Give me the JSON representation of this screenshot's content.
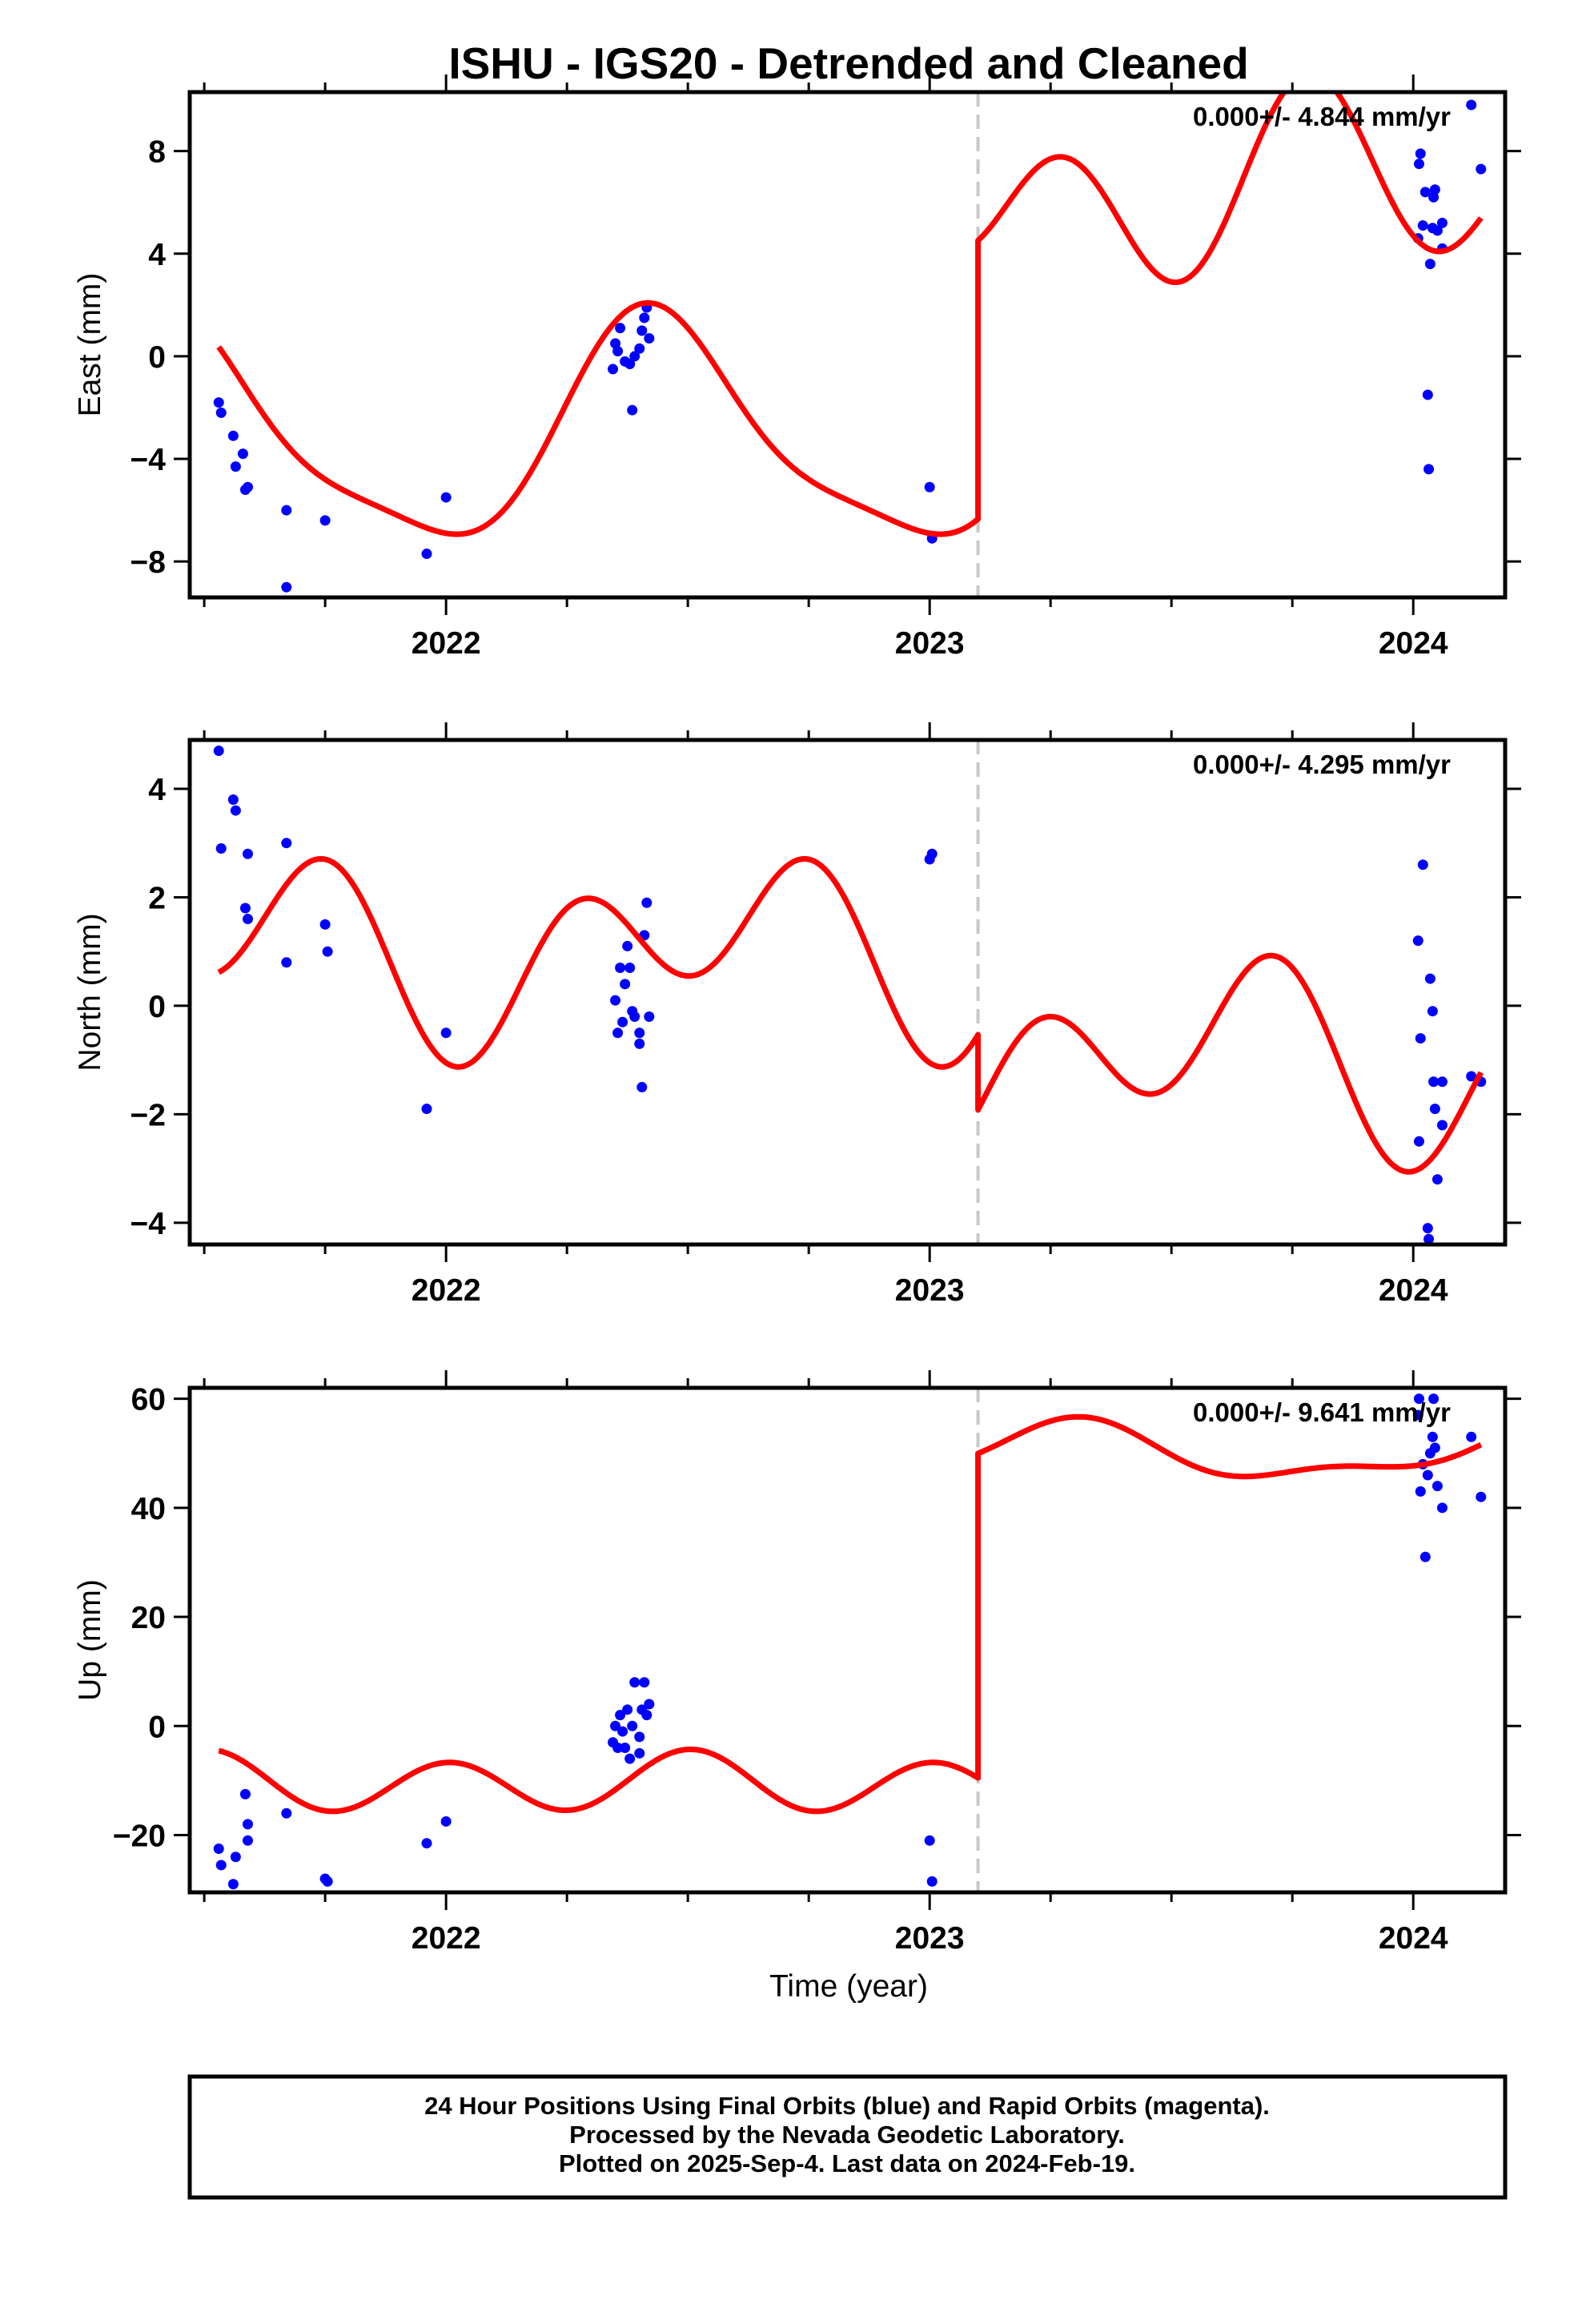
{
  "title": "ISHU - IGS20 - Detrended and Cleaned",
  "xlabel": "Time (year)",
  "footer": {
    "line1": "24 Hour Positions Using Final Orbits (blue) and Rapid Orbits (magenta).",
    "line2": "Processed by the Nevada Geodetic Laboratory.",
    "line3": "Plotted on 2025-Sep-4. Last data on 2024-Feb-19."
  },
  "colors": {
    "data": "#0000ff",
    "model": "#ff0000",
    "step": "#c8c8c8",
    "frame": "#000000"
  },
  "chart_data": [
    {
      "type": "scatter",
      "ylabel": "East (mm)",
      "rate_label": "0.000+/- 4.844 mm/yr",
      "xlim": [
        2021.47,
        2024.19
      ],
      "ylim": [
        -9.4,
        10.3
      ],
      "yticks": [
        -8,
        -4,
        0,
        4,
        8
      ],
      "xticks": [
        2022,
        2023,
        2024
      ],
      "step_epoch": 2023.1,
      "points": [
        [
          2021.53,
          -1.8
        ],
        [
          2021.535,
          -2.2
        ],
        [
          2021.56,
          -3.1
        ],
        [
          2021.565,
          -4.3
        ],
        [
          2021.58,
          -3.8
        ],
        [
          2021.585,
          -5.2
        ],
        [
          2021.59,
          -5.1
        ],
        [
          2021.67,
          -6.0
        ],
        [
          2021.75,
          -6.4
        ],
        [
          2021.67,
          -9.0
        ],
        [
          2021.96,
          -7.7
        ],
        [
          2022.0,
          -5.5
        ],
        [
          2022.35,
          0.5
        ],
        [
          2022.36,
          1.1
        ],
        [
          2022.37,
          -0.2
        ],
        [
          2022.38,
          -0.3
        ],
        [
          2022.385,
          -2.1
        ],
        [
          2022.39,
          0.0
        ],
        [
          2022.4,
          0.3
        ],
        [
          2022.405,
          1.0
        ],
        [
          2022.41,
          1.5
        ],
        [
          2022.415,
          1.9
        ],
        [
          2022.42,
          0.7
        ],
        [
          2022.345,
          -0.5
        ],
        [
          2022.355,
          0.2
        ],
        [
          2023.0,
          -5.1
        ],
        [
          2023.005,
          -7.1
        ],
        [
          2024.01,
          4.6
        ],
        [
          2024.012,
          7.5
        ],
        [
          2024.015,
          7.9
        ],
        [
          2024.02,
          5.1
        ],
        [
          2024.025,
          6.4
        ],
        [
          2024.03,
          -1.5
        ],
        [
          2024.032,
          -4.4
        ],
        [
          2024.035,
          3.6
        ],
        [
          2024.04,
          5.0
        ],
        [
          2024.042,
          6.2
        ],
        [
          2024.045,
          6.5
        ],
        [
          2024.05,
          4.9
        ],
        [
          2024.06,
          4.2
        ],
        [
          2024.06,
          5.2
        ],
        [
          2024.12,
          9.8
        ],
        [
          2024.14,
          7.3
        ]
      ],
      "model": {
        "type": "annual+semiannual+offset",
        "t0": 2022.0,
        "pre": {
          "c": -3.1,
          "a1": 1.5,
          "b1": -4.0,
          "a2": -1.0,
          "b2": 0.2
        },
        "post": {
          "c": 6.5,
          "a1": -1.5,
          "b1": 0.9,
          "a2": -1.05,
          "b2": -2.7
        },
        "start": 2021.53,
        "end": 2024.14
      }
    },
    {
      "type": "scatter",
      "ylabel": "North (mm)",
      "rate_label": "0.000+/- 4.295 mm/yr",
      "xlim": [
        2021.47,
        2024.19
      ],
      "ylim": [
        -4.4,
        4.9
      ],
      "yticks": [
        -4,
        -2,
        0,
        2,
        4
      ],
      "xticks": [
        2022,
        2023,
        2024
      ],
      "step_epoch": 2023.1,
      "points": [
        [
          2021.53,
          4.7
        ],
        [
          2021.535,
          2.9
        ],
        [
          2021.56,
          3.8
        ],
        [
          2021.565,
          3.6
        ],
        [
          2021.59,
          2.8
        ],
        [
          2021.585,
          1.8
        ],
        [
          2021.59,
          1.6
        ],
        [
          2021.67,
          3.0
        ],
        [
          2021.67,
          0.8
        ],
        [
          2021.75,
          1.5
        ],
        [
          2021.755,
          1.0
        ],
        [
          2021.96,
          -1.9
        ],
        [
          2022.0,
          -0.5
        ],
        [
          2022.35,
          0.1
        ],
        [
          2022.36,
          0.7
        ],
        [
          2022.365,
          -0.3
        ],
        [
          2022.37,
          0.4
        ],
        [
          2022.375,
          1.1
        ],
        [
          2022.38,
          0.7
        ],
        [
          2022.385,
          -0.1
        ],
        [
          2022.39,
          -0.2
        ],
        [
          2022.4,
          -0.5
        ],
        [
          2022.405,
          -1.5
        ],
        [
          2022.41,
          1.3
        ],
        [
          2022.415,
          1.9
        ],
        [
          2022.42,
          -0.2
        ],
        [
          2022.355,
          -0.5
        ],
        [
          2022.4,
          -0.7
        ],
        [
          2023.0,
          2.7
        ],
        [
          2023.005,
          2.8
        ],
        [
          2024.01,
          1.2
        ],
        [
          2024.012,
          -2.5
        ],
        [
          2024.015,
          -0.6
        ],
        [
          2024.02,
          2.6
        ],
        [
          2024.03,
          -4.1
        ],
        [
          2024.032,
          -4.3
        ],
        [
          2024.035,
          0.5
        ],
        [
          2024.04,
          -0.1
        ],
        [
          2024.042,
          -1.4
        ],
        [
          2024.045,
          -1.9
        ],
        [
          2024.05,
          -3.2
        ],
        [
          2024.06,
          -2.2
        ],
        [
          2024.06,
          -1.4
        ],
        [
          2024.12,
          -1.3
        ],
        [
          2024.14,
          -1.4
        ]
      ],
      "model": {
        "type": "annual+semiannual+offset",
        "t0": 2022.0,
        "pre": {
          "c": 1.0,
          "a1": -0.45,
          "b1": -0.8,
          "a2": -0.25,
          "b2": -1.25
        },
        "post": {
          "c": -1.0,
          "a1": -0.45,
          "b1": -0.8,
          "a2": 0.4,
          "b2": -1.25
        },
        "start": 2021.53,
        "end": 2024.14
      }
    },
    {
      "type": "scatter",
      "ylabel": "Up (mm)",
      "rate_label": "0.000+/- 9.641 mm/yr",
      "xlim": [
        2021.47,
        2024.19
      ],
      "ylim": [
        -30.5,
        62.0
      ],
      "yticks": [
        -20,
        0,
        20,
        40,
        60
      ],
      "xticks": [
        2022,
        2023,
        2024
      ],
      "step_epoch": 2023.1,
      "points": [
        [
          2021.53,
          -22.5
        ],
        [
          2021.535,
          -25.5
        ],
        [
          2021.56,
          -29.0
        ],
        [
          2021.565,
          -24.0
        ],
        [
          2021.59,
          -21.0
        ],
        [
          2021.59,
          -18.0
        ],
        [
          2021.585,
          -12.5
        ],
        [
          2021.67,
          -16.0
        ],
        [
          2021.75,
          -28.0
        ],
        [
          2021.755,
          -28.5
        ],
        [
          2021.96,
          -21.5
        ],
        [
          2022.0,
          -17.5
        ],
        [
          2022.35,
          0.0
        ],
        [
          2022.355,
          -4.0
        ],
        [
          2022.36,
          2.0
        ],
        [
          2022.365,
          -1.0
        ],
        [
          2022.37,
          -4.0
        ],
        [
          2022.375,
          3.0
        ],
        [
          2022.38,
          -6.0
        ],
        [
          2022.385,
          0.0
        ],
        [
          2022.39,
          8.0
        ],
        [
          2022.4,
          -2.0
        ],
        [
          2022.405,
          3.0
        ],
        [
          2022.41,
          8.0
        ],
        [
          2022.415,
          2.0
        ],
        [
          2022.42,
          4.0
        ],
        [
          2022.4,
          -5.0
        ],
        [
          2022.345,
          -3.0
        ],
        [
          2023.0,
          -21.0
        ],
        [
          2023.005,
          -28.5
        ],
        [
          2024.01,
          57.0
        ],
        [
          2024.012,
          60.0
        ],
        [
          2024.015,
          43.0
        ],
        [
          2024.02,
          48.0
        ],
        [
          2024.025,
          31.0
        ],
        [
          2024.03,
          46.0
        ],
        [
          2024.035,
          50.0
        ],
        [
          2024.04,
          53.0
        ],
        [
          2024.042,
          60.0
        ],
        [
          2024.045,
          51.0
        ],
        [
          2024.05,
          44.0
        ],
        [
          2024.06,
          40.0
        ],
        [
          2024.12,
          53.0
        ],
        [
          2024.14,
          42.0
        ]
      ],
      "model": {
        "type": "annual+semiannual+offset",
        "t0": 2022.0,
        "pre": {
          "c": -10.5,
          "a1": 0.05,
          "b1": -1.2,
          "a2": 0.4,
          "b2": 5.0
        },
        "post": {
          "c": 50.0,
          "a1": 4.6,
          "b1": -1.0,
          "a2": -1.6,
          "b2": -1.3
        },
        "start": 2021.53,
        "end": 2024.14
      }
    }
  ]
}
